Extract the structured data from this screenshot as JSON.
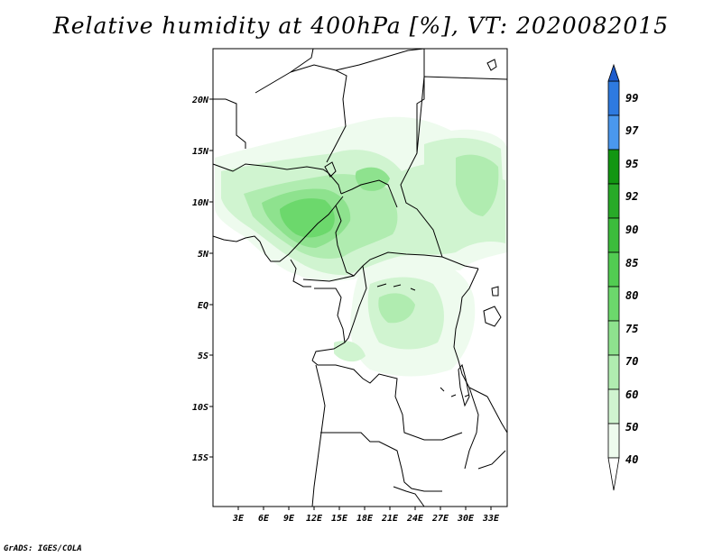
{
  "title": "Relative humidity at 400hPa [%], VT: 2020082015",
  "credit": "GrADS: IGES/COLA",
  "map": {
    "lat_ticks": [
      "20N",
      "15N",
      "10N",
      "5N",
      "EQ",
      "5S",
      "10S",
      "15S"
    ],
    "lon_ticks": [
      "3E",
      "6E",
      "9E",
      "12E",
      "15E",
      "18E",
      "21E",
      "24E",
      "27E",
      "30E",
      "33E"
    ]
  },
  "legend": {
    "levels": [
      "99",
      "97",
      "95",
      "92",
      "90",
      "85",
      "80",
      "75",
      "70",
      "60",
      "50",
      "40"
    ],
    "colors": [
      "#1e5ccc",
      "#2e7ae0",
      "#4a98ee",
      "#129612",
      "#28aa28",
      "#3cbc3c",
      "#52cc52",
      "#6cd86c",
      "#8ee28e",
      "#b0ecb0",
      "#d0f4d0",
      "#eefbee"
    ]
  }
}
